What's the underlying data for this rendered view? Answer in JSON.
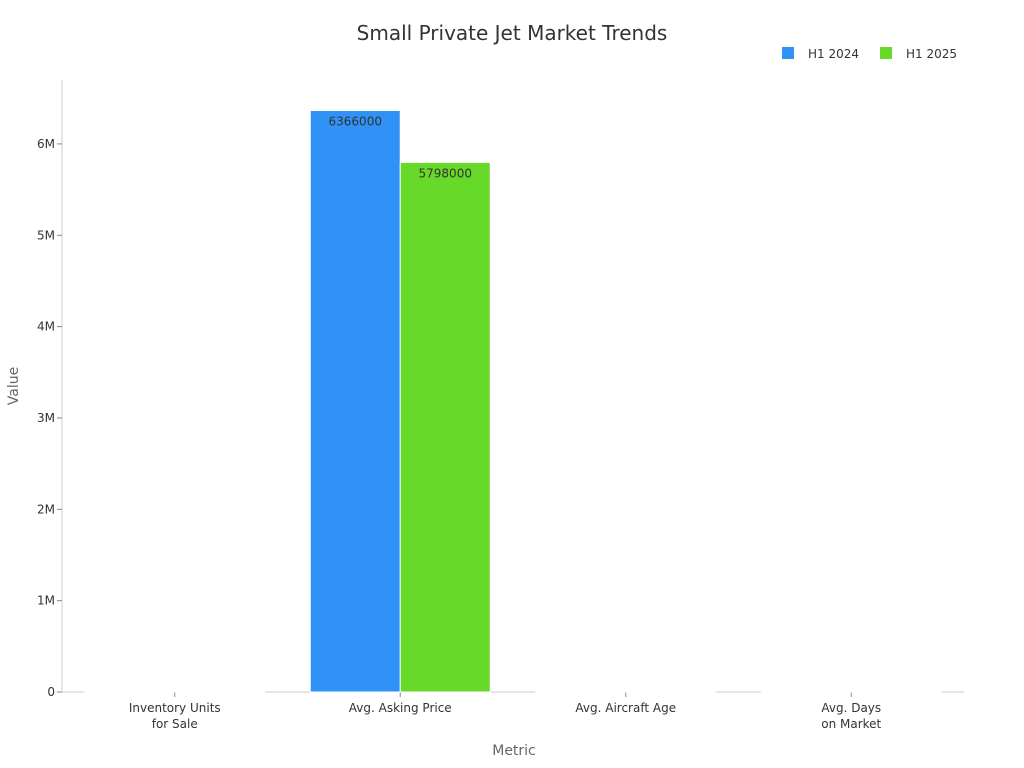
{
  "chart_data": {
    "type": "bar",
    "title": "Small Private Jet Market Trends",
    "xlabel": "Metric",
    "ylabel": "Value",
    "categories": [
      [
        "Inventory Units",
        "for Sale"
      ],
      [
        "Avg. Asking Price"
      ],
      [
        "Avg. Aircraft Age"
      ],
      [
        "Avg. Days",
        "on Market"
      ]
    ],
    "series": [
      {
        "name": "H1 2024",
        "color": "#3091f7",
        "values": [
          1500,
          6366000,
          20,
          250
        ]
      },
      {
        "name": "H1 2025",
        "color": "#67da29",
        "values": [
          1600,
          5798000,
          21,
          230
        ]
      }
    ],
    "data_labels": {
      "series": [
        [
          "",
          "6366000",
          "",
          ""
        ],
        [
          "",
          "5798000",
          "",
          ""
        ]
      ]
    },
    "ylim": [
      0,
      6700000
    ],
    "yticks": [
      0,
      1000000,
      2000000,
      3000000,
      4000000,
      5000000,
      6000000
    ],
    "ytick_labels": [
      "0",
      "1M",
      "2M",
      "3M",
      "4M",
      "5M",
      "6M"
    ],
    "legend_position": "top-right",
    "grid": false
  }
}
